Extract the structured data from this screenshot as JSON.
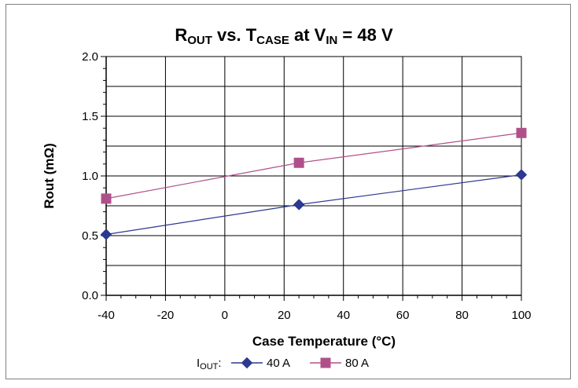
{
  "chart_data": {
    "type": "line",
    "title": {
      "parts": [
        {
          "text": "R",
          "sub": false
        },
        {
          "text": "OUT",
          "sub": true
        },
        {
          "text": " vs. T",
          "sub": false
        },
        {
          "text": "CASE",
          "sub": true
        },
        {
          "text": " at V",
          "sub": false
        },
        {
          "text": "IN",
          "sub": true
        },
        {
          "text": " = 48 V",
          "sub": false
        }
      ]
    },
    "xlabel": "Case Temperature (°C)",
    "ylabel": "Rout (mΩ)",
    "xlim": [
      -40,
      100
    ],
    "ylim": [
      0.0,
      2.0
    ],
    "x_ticks": [
      "-40",
      "-20",
      "0",
      "20",
      "40",
      "60",
      "80",
      "100"
    ],
    "y_ticks": [
      "0.0",
      "0.5",
      "1.0",
      "1.5",
      "2.0"
    ],
    "grid": true,
    "legend_position": "bottom",
    "legend_title": {
      "text": "I",
      "sub": "OUT",
      "suffix": ":"
    },
    "series": [
      {
        "name": "40 A",
        "color": "#2B3990",
        "marker": "diamond",
        "x": [
          -40,
          25,
          100
        ],
        "y": [
          0.51,
          0.76,
          1.01
        ]
      },
      {
        "name": "80 A",
        "color": "#B0508A",
        "marker": "square",
        "x": [
          -40,
          25,
          100
        ],
        "y": [
          0.81,
          1.11,
          1.36
        ]
      }
    ]
  }
}
